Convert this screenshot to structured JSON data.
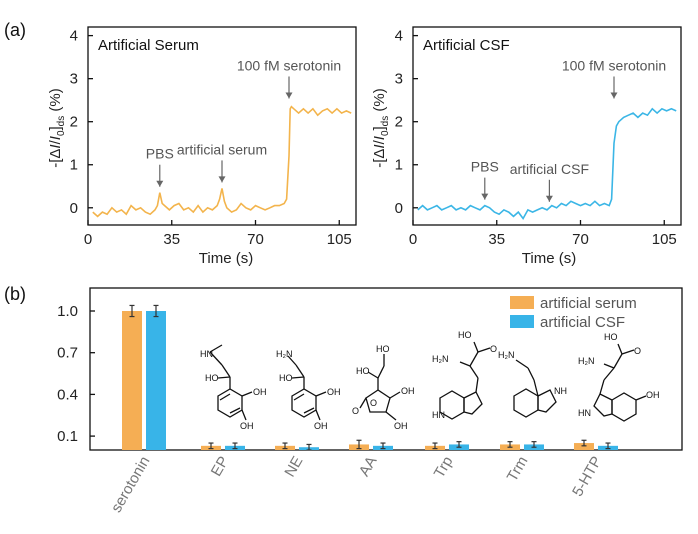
{
  "panel_labels": [
    "(a)",
    "(b)"
  ],
  "chart_data": [
    {
      "type": "line",
      "title": "Artificial Serum",
      "xlabel": "Time (s)",
      "ylabel": "-[ΔI/I0]ds (%)",
      "xlim": [
        0,
        112
      ],
      "ylim": [
        -0.4,
        4.2
      ],
      "xticks": [
        0,
        35,
        70,
        105
      ],
      "yticks": [
        0,
        1,
        2,
        3,
        4
      ],
      "color": "#f3b44c",
      "x": [
        2,
        4,
        6,
        8,
        10,
        12,
        14,
        16,
        18,
        20,
        22,
        24,
        26,
        28,
        29,
        30,
        31,
        32,
        34,
        36,
        38,
        40,
        42,
        44,
        46,
        48,
        50,
        52,
        54,
        55,
        56,
        57,
        58,
        60,
        62,
        64,
        66,
        68,
        70,
        72,
        74,
        76,
        78,
        80,
        82,
        83,
        84,
        84.5,
        85,
        86,
        88,
        90,
        92,
        94,
        96,
        98,
        100,
        102,
        104,
        106,
        108,
        110
      ],
      "y": [
        -0.1,
        -0.2,
        -0.1,
        -0.15,
        0,
        -0.1,
        -0.05,
        -0.15,
        0.05,
        -0.05,
        0,
        -0.1,
        -0.15,
        -0.05,
        0.05,
        0.35,
        0.1,
        0.05,
        -0.05,
        0.05,
        0.1,
        -0.05,
        0.0,
        -0.1,
        0.05,
        -0.1,
        0.0,
        -0.05,
        0.05,
        0.2,
        0.45,
        0.15,
        0.0,
        -0.1,
        -0.05,
        0.1,
        0.0,
        -0.05,
        0.05,
        0.0,
        -0.05,
        0.0,
        0.05,
        0.05,
        0.1,
        0.2,
        1.2,
        2.3,
        2.35,
        2.3,
        2.2,
        2.3,
        2.2,
        2.3,
        2.15,
        2.25,
        2.3,
        2.2,
        2.3,
        2.2,
        2.25,
        2.2
      ],
      "annotations": [
        {
          "text": "PBS",
          "x": 30
        },
        {
          "text": "artificial serum",
          "x": 56
        },
        {
          "text": "100 fM serotonin",
          "x": 84
        }
      ]
    },
    {
      "type": "line",
      "title": "Artificial CSF",
      "xlabel": "Time (s)",
      "ylabel": "-[ΔI/I0]ds (%)",
      "xlim": [
        0,
        112
      ],
      "ylim": [
        -0.4,
        4.2
      ],
      "xticks": [
        0,
        35,
        70,
        105
      ],
      "yticks": [
        0,
        1,
        2,
        3,
        4
      ],
      "color": "#3bb6e6",
      "x": [
        2,
        4,
        6,
        8,
        10,
        12,
        14,
        16,
        18,
        20,
        22,
        24,
        26,
        28,
        30,
        32,
        34,
        36,
        38,
        40,
        42,
        44,
        46,
        48,
        50,
        52,
        54,
        56,
        58,
        60,
        62,
        64,
        66,
        68,
        70,
        72,
        74,
        76,
        78,
        80,
        82,
        83,
        84,
        85,
        86,
        88,
        90,
        92,
        94,
        96,
        98,
        100,
        102,
        104,
        106,
        108,
        110
      ],
      "y": [
        -0.05,
        0.05,
        -0.05,
        0.0,
        0.05,
        -0.05,
        0.0,
        0.05,
        -0.05,
        0.0,
        -0.05,
        0.05,
        0.0,
        -0.05,
        0.05,
        0.0,
        -0.1,
        -0.15,
        -0.05,
        -0.1,
        -0.2,
        -0.1,
        -0.25,
        -0.05,
        -0.1,
        -0.05,
        0.0,
        -0.05,
        0.05,
        0.0,
        0.1,
        0.05,
        0.15,
        0.1,
        0.05,
        0.1,
        0.05,
        0.15,
        0.05,
        0.1,
        0.05,
        0.2,
        1.5,
        1.9,
        2.0,
        2.1,
        2.15,
        2.2,
        2.1,
        2.2,
        2.15,
        2.3,
        2.2,
        2.3,
        2.25,
        2.3,
        2.25
      ],
      "annotations": [
        {
          "text": "PBS",
          "x": 30
        },
        {
          "text": "artificial CSF",
          "x": 57
        },
        {
          "text": "100 fM serotonin",
          "x": 84
        }
      ]
    },
    {
      "type": "bar",
      "categories": [
        "serotonin",
        "EP",
        "NE",
        "AA",
        "Trp",
        "Trm",
        "5-HTP"
      ],
      "ylim": [
        0,
        1.1
      ],
      "yticks": [
        0.1,
        0.4,
        0.7,
        1.0
      ],
      "ytick_labels": [
        "0.1",
        "0.4",
        "0.7",
        "1.0"
      ],
      "legend_position": "top-right",
      "series": [
        {
          "name": "artificial serum",
          "color": "#f5ae54",
          "values": [
            1.0,
            0.03,
            0.03,
            0.04,
            0.03,
            0.04,
            0.05
          ],
          "errors": [
            0.04,
            0.02,
            0.02,
            0.03,
            0.02,
            0.02,
            0.02
          ]
        },
        {
          "name": "artificial CSF",
          "color": "#38b4e8",
          "values": [
            1.0,
            0.03,
            0.02,
            0.03,
            0.04,
            0.04,
            0.03
          ],
          "errors": [
            0.04,
            0.02,
            0.02,
            0.02,
            0.02,
            0.02,
            0.02
          ]
        }
      ]
    }
  ]
}
